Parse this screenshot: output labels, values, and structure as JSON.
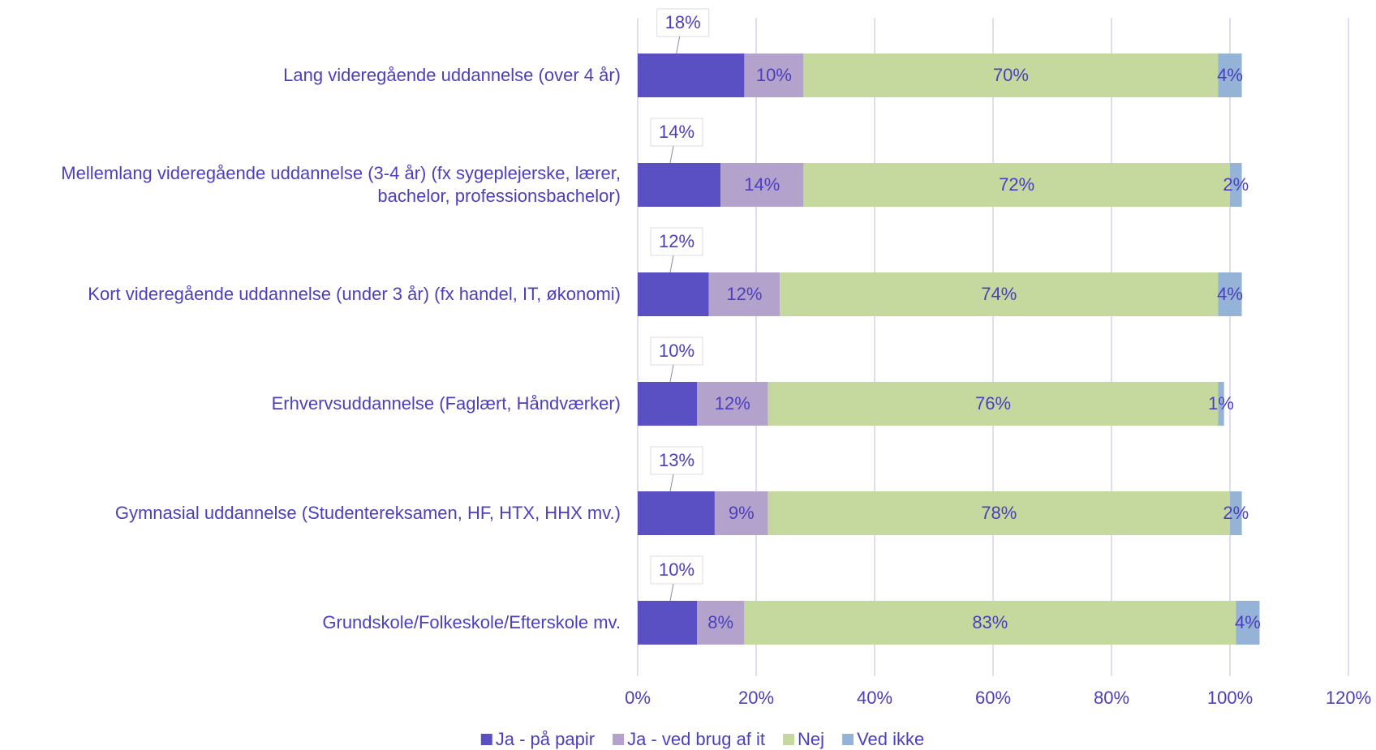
{
  "chart_data": {
    "type": "stacked_bar_horizontal",
    "categories": [
      "Lang videregående uddannelse (over 4 år)",
      "Mellemlang videregående uddannelse (3-4 år) (fx sygeplejerske, lærer, bachelor, professionsbachelor)",
      "Kort videregående uddannelse (under 3 år) (fx handel, IT, økonomi)",
      "Erhvervsuddannelse (Faglært, Håndværker)",
      "Gymnasial uddannelse (Studentereksamen, HF, HTX, HHX mv.)",
      "Grundskole/Folkeskole/Efterskole mv."
    ],
    "series": [
      {
        "name": "Ja - på papir",
        "color": "#5b4fc4",
        "values": [
          18,
          14,
          12,
          10,
          13,
          10
        ],
        "value_labels": [
          "18%",
          "14%",
          "12%",
          "10%",
          "13%",
          "10%"
        ]
      },
      {
        "name": "Ja - ved brug af it",
        "color": "#b3a2cc",
        "values": [
          10,
          14,
          12,
          12,
          9,
          8
        ],
        "value_labels": [
          "10%",
          "14%",
          "12%",
          "12%",
          "9%",
          "8%"
        ]
      },
      {
        "name": "Nej",
        "color": "#c5d89e",
        "values": [
          70,
          72,
          74,
          76,
          78,
          83
        ],
        "value_labels": [
          "70%",
          "72%",
          "74%",
          "76%",
          "78%",
          "83%"
        ]
      },
      {
        "name": "Ved ikke",
        "color": "#95b3d7",
        "values": [
          4,
          2,
          4,
          1,
          2,
          4
        ],
        "value_labels": [
          "4%",
          "2%",
          "4%",
          "1%",
          "2%",
          "4%"
        ]
      }
    ],
    "xlim": [
      0,
      120
    ],
    "xticks": [
      {
        "value": 0,
        "label": "0%"
      },
      {
        "value": 20,
        "label": "20%"
      },
      {
        "value": 40,
        "label": "40%"
      },
      {
        "value": 60,
        "label": "60%"
      },
      {
        "value": 80,
        "label": "80%"
      },
      {
        "value": 100,
        "label": "100%"
      },
      {
        "value": 120,
        "label": "120%"
      }
    ],
    "grid": true,
    "legend": "bottom"
  }
}
